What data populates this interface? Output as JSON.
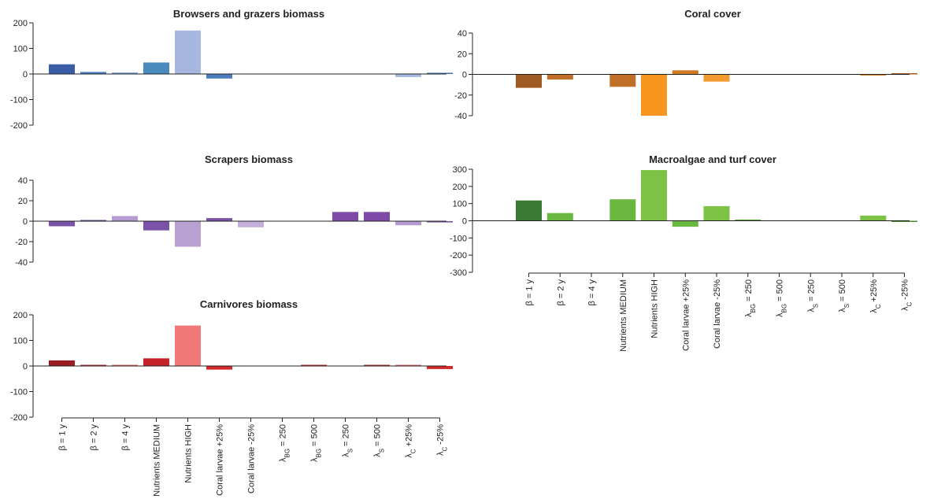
{
  "chart_data": [
    {
      "type": "bar",
      "title": "Browsers and grazers biomass",
      "ylim": [
        -200,
        200
      ],
      "yticks": [
        -200,
        -100,
        0,
        100,
        200
      ],
      "categories": [
        "β = 1 y",
        "β = 2 y",
        "β = 4 y",
        "Nutrients MEDIUM",
        "Nutrients HIGH",
        "Coral larvae +25%",
        "Coral larvae -25%",
        "λBG = 250",
        "λBG = 500",
        "λS = 250",
        "λS = 500",
        "λC +25%",
        "λC -25%"
      ],
      "values": [
        38,
        8,
        6,
        45,
        170,
        -18,
        0,
        0,
        0,
        0,
        0,
        -12,
        3
      ],
      "colors": [
        "#3a5da8",
        "#4a7dbd",
        "#8ea8d8",
        "#4a8bbd",
        "#a6b8df",
        "#4a7dbd",
        "#8ea8d8",
        "#4a7dbd",
        "#8ea8d8",
        "#4a7dbd",
        "#4a7dbd",
        "#a6b8df",
        "#3a6ea8"
      ]
    },
    {
      "type": "bar",
      "title": "Scrapers biomass",
      "ylim": [
        -40,
        40
      ],
      "yticks": [
        -40,
        -20,
        0,
        20,
        40
      ],
      "categories": [
        "β = 1 y",
        "β = 2 y",
        "β = 4 y",
        "Nutrients MEDIUM",
        "Nutrients HIGH",
        "Coral larvae +25%",
        "Coral larvae -25%",
        "λBG = 250",
        "λBG = 500",
        "λS = 250",
        "λS = 500",
        "λC +25%",
        "λC -25%"
      ],
      "values": [
        -5,
        1,
        5,
        -9,
        -25,
        3,
        -6,
        0,
        0,
        9,
        9,
        -4,
        -1
      ],
      "colors": [
        "#7a52a8",
        "#6a4a9a",
        "#b69ad2",
        "#7a52a8",
        "#b8a0d0",
        "#7a52a8",
        "#c4aedc",
        "#7a52a8",
        "#7a52a8",
        "#7e4aa8",
        "#7e4aa8",
        "#b69ad2",
        "#6a4a9a"
      ]
    },
    {
      "type": "bar",
      "title": "Carnivores biomass",
      "ylim": [
        -200,
        200
      ],
      "yticks": [
        -200,
        -100,
        0,
        100,
        200
      ],
      "categories": [
        "β = 1 y",
        "β = 2 y",
        "β = 4 y",
        "Nutrients MEDIUM",
        "Nutrients HIGH",
        "Coral larvae +25%",
        "Coral larvae -25%",
        "λBG = 250",
        "λBG = 500",
        "λS = 250",
        "λS = 500",
        "λC +25%",
        "λC -25%"
      ],
      "values": [
        22,
        4,
        3,
        30,
        158,
        -14,
        0,
        0,
        2,
        0,
        3,
        3,
        -12
      ],
      "colors": [
        "#9a1c22",
        "#b02a2e",
        "#e06a6a",
        "#c42228",
        "#f07878",
        "#d42828",
        "#d42828",
        "#d42828",
        "#c42228",
        "#d42828",
        "#b02a2e",
        "#e06a6a",
        "#d42828"
      ]
    },
    {
      "type": "bar",
      "title": "Coral cover",
      "ylim": [
        -40,
        40
      ],
      "yticks": [
        -40,
        -20,
        0,
        20,
        40
      ],
      "categories": [
        "β = 1 y",
        "β = 2 y",
        "β = 4 y",
        "Nutrients MEDIUM",
        "Nutrients HIGH",
        "Coral larvae +25%",
        "Coral larvae -25%",
        "λBG = 250",
        "λBG = 500",
        "λS = 250",
        "λS = 500",
        "λC +25%",
        "λC -25%"
      ],
      "values": [
        -13,
        -5,
        0,
        -12,
        -40,
        4,
        -7,
        0,
        0,
        0,
        0,
        -1,
        1
      ],
      "colors": [
        "#a05a22",
        "#c07028",
        "#f2962a",
        "#c07028",
        "#f6961e",
        "#d07a22",
        "#f29a2e",
        "#d07a22",
        "#d07a22",
        "#d07a22",
        "#d07a22",
        "#d07a22",
        "#a05a22"
      ]
    },
    {
      "type": "bar",
      "title": "Macroalgae and turf cover",
      "ylim": [
        -300,
        300
      ],
      "yticks": [
        -300,
        -200,
        -100,
        0,
        100,
        200,
        300
      ],
      "categories": [
        "β = 1 y",
        "β = 2 y",
        "β = 4 y",
        "Nutrients MEDIUM",
        "Nutrients HIGH",
        "Coral larvae +25%",
        "Coral larvae -25%",
        "λBG = 250",
        "λBG = 500",
        "λS = 250",
        "λS = 500",
        "λC +25%",
        "λC -25%"
      ],
      "values": [
        118,
        45,
        0,
        125,
        295,
        -35,
        85,
        5,
        0,
        0,
        0,
        30,
        -5
      ],
      "colors": [
        "#3a7a32",
        "#6ab840",
        "#8cc84c",
        "#6ab840",
        "#7cc244",
        "#6ab840",
        "#7cc244",
        "#5aa83a",
        "#6ab840",
        "#6ab840",
        "#6ab840",
        "#7cc244",
        "#4a8a34"
      ]
    }
  ]
}
